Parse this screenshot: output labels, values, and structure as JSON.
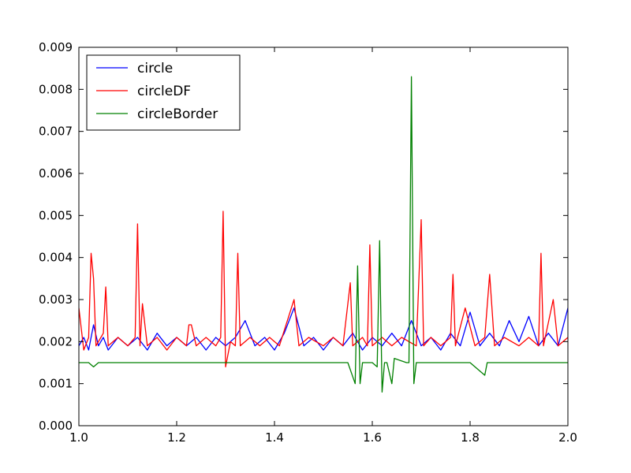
{
  "chart_data": {
    "type": "line",
    "title": "",
    "xlabel": "",
    "ylabel": "",
    "xlim": [
      1.0,
      2.0
    ],
    "ylim": [
      0.0,
      0.009
    ],
    "x_ticks": [
      1.0,
      1.2,
      1.4,
      1.6,
      1.8,
      2.0
    ],
    "x_tick_labels": [
      "1.0",
      "1.2",
      "1.4",
      "1.6",
      "1.8",
      "2.0"
    ],
    "y_ticks": [
      0.0,
      0.001,
      0.002,
      0.003,
      0.004,
      0.005,
      0.006,
      0.007,
      0.008,
      0.009
    ],
    "y_tick_labels": [
      "0.000",
      "0.001",
      "0.002",
      "0.003",
      "0.004",
      "0.005",
      "0.006",
      "0.007",
      "0.008",
      "0.009"
    ],
    "grid": false,
    "legend_position": "top-left",
    "series": [
      {
        "name": "circle",
        "color": "#0000ff",
        "points": [
          [
            1.0,
            0.0019
          ],
          [
            1.01,
            0.0021
          ],
          [
            1.02,
            0.0018
          ],
          [
            1.03,
            0.0024
          ],
          [
            1.04,
            0.0019
          ],
          [
            1.05,
            0.0021
          ],
          [
            1.06,
            0.0018
          ],
          [
            1.08,
            0.0021
          ],
          [
            1.1,
            0.0019
          ],
          [
            1.12,
            0.0021
          ],
          [
            1.14,
            0.0018
          ],
          [
            1.16,
            0.0022
          ],
          [
            1.18,
            0.0019
          ],
          [
            1.2,
            0.0021
          ],
          [
            1.22,
            0.0019
          ],
          [
            1.24,
            0.0021
          ],
          [
            1.26,
            0.0018
          ],
          [
            1.28,
            0.0021
          ],
          [
            1.3,
            0.0019
          ],
          [
            1.32,
            0.0021
          ],
          [
            1.34,
            0.0025
          ],
          [
            1.36,
            0.0019
          ],
          [
            1.38,
            0.0021
          ],
          [
            1.4,
            0.0018
          ],
          [
            1.42,
            0.0022
          ],
          [
            1.44,
            0.0028
          ],
          [
            1.46,
            0.0019
          ],
          [
            1.48,
            0.0021
          ],
          [
            1.5,
            0.0018
          ],
          [
            1.52,
            0.0021
          ],
          [
            1.54,
            0.0019
          ],
          [
            1.56,
            0.0022
          ],
          [
            1.58,
            0.0018
          ],
          [
            1.6,
            0.0021
          ],
          [
            1.62,
            0.0019
          ],
          [
            1.64,
            0.0022
          ],
          [
            1.66,
            0.0019
          ],
          [
            1.68,
            0.0025
          ],
          [
            1.7,
            0.0019
          ],
          [
            1.72,
            0.0021
          ],
          [
            1.74,
            0.0018
          ],
          [
            1.76,
            0.0022
          ],
          [
            1.78,
            0.0019
          ],
          [
            1.8,
            0.0027
          ],
          [
            1.82,
            0.0019
          ],
          [
            1.84,
            0.0022
          ],
          [
            1.86,
            0.0019
          ],
          [
            1.88,
            0.0025
          ],
          [
            1.9,
            0.002
          ],
          [
            1.92,
            0.0026
          ],
          [
            1.94,
            0.0019
          ],
          [
            1.96,
            0.0022
          ],
          [
            1.98,
            0.0019
          ],
          [
            2.0,
            0.0028
          ]
        ]
      },
      {
        "name": "circleDF",
        "color": "#ff0000",
        "points": [
          [
            1.0,
            0.0028
          ],
          [
            1.01,
            0.0018
          ],
          [
            1.02,
            0.0021
          ],
          [
            1.025,
            0.0041
          ],
          [
            1.03,
            0.0035
          ],
          [
            1.035,
            0.0019
          ],
          [
            1.05,
            0.0022
          ],
          [
            1.055,
            0.0033
          ],
          [
            1.06,
            0.0019
          ],
          [
            1.08,
            0.0021
          ],
          [
            1.1,
            0.0019
          ],
          [
            1.115,
            0.0021
          ],
          [
            1.12,
            0.0048
          ],
          [
            1.125,
            0.0019
          ],
          [
            1.13,
            0.0029
          ],
          [
            1.14,
            0.0019
          ],
          [
            1.16,
            0.0021
          ],
          [
            1.18,
            0.0018
          ],
          [
            1.2,
            0.0021
          ],
          [
            1.22,
            0.0019
          ],
          [
            1.225,
            0.0024
          ],
          [
            1.23,
            0.0024
          ],
          [
            1.24,
            0.0019
          ],
          [
            1.26,
            0.0021
          ],
          [
            1.28,
            0.0019
          ],
          [
            1.29,
            0.0021
          ],
          [
            1.295,
            0.0051
          ],
          [
            1.3,
            0.0014
          ],
          [
            1.31,
            0.002
          ],
          [
            1.32,
            0.0019
          ],
          [
            1.325,
            0.0041
          ],
          [
            1.33,
            0.0019
          ],
          [
            1.35,
            0.0021
          ],
          [
            1.37,
            0.0019
          ],
          [
            1.39,
            0.0021
          ],
          [
            1.41,
            0.0019
          ],
          [
            1.44,
            0.003
          ],
          [
            1.45,
            0.0019
          ],
          [
            1.47,
            0.0021
          ],
          [
            1.5,
            0.0019
          ],
          [
            1.52,
            0.0021
          ],
          [
            1.54,
            0.0019
          ],
          [
            1.555,
            0.0034
          ],
          [
            1.56,
            0.0019
          ],
          [
            1.58,
            0.0021
          ],
          [
            1.59,
            0.0019
          ],
          [
            1.595,
            0.0043
          ],
          [
            1.6,
            0.0019
          ],
          [
            1.62,
            0.0021
          ],
          [
            1.64,
            0.0019
          ],
          [
            1.66,
            0.0021
          ],
          [
            1.69,
            0.0019
          ],
          [
            1.7,
            0.0049
          ],
          [
            1.705,
            0.0019
          ],
          [
            1.72,
            0.0021
          ],
          [
            1.74,
            0.0019
          ],
          [
            1.76,
            0.0021
          ],
          [
            1.765,
            0.0036
          ],
          [
            1.77,
            0.0019
          ],
          [
            1.79,
            0.0028
          ],
          [
            1.81,
            0.0019
          ],
          [
            1.83,
            0.0021
          ],
          [
            1.84,
            0.0036
          ],
          [
            1.85,
            0.0019
          ],
          [
            1.87,
            0.0021
          ],
          [
            1.9,
            0.0019
          ],
          [
            1.92,
            0.0021
          ],
          [
            1.94,
            0.0019
          ],
          [
            1.945,
            0.0041
          ],
          [
            1.95,
            0.0019
          ],
          [
            1.97,
            0.003
          ],
          [
            1.98,
            0.0019
          ],
          [
            2.0,
            0.0021
          ]
        ]
      },
      {
        "name": "circleBorder",
        "color": "#008000",
        "points": [
          [
            1.0,
            0.0015
          ],
          [
            1.02,
            0.0015
          ],
          [
            1.03,
            0.0014
          ],
          [
            1.04,
            0.0015
          ],
          [
            1.08,
            0.0015
          ],
          [
            1.1,
            0.0015
          ],
          [
            1.13,
            0.0015
          ],
          [
            1.15,
            0.0015
          ],
          [
            1.2,
            0.0015
          ],
          [
            1.25,
            0.0015
          ],
          [
            1.3,
            0.0015
          ],
          [
            1.35,
            0.0015
          ],
          [
            1.4,
            0.0015
          ],
          [
            1.45,
            0.0015
          ],
          [
            1.5,
            0.0015
          ],
          [
            1.55,
            0.0015
          ],
          [
            1.565,
            0.001
          ],
          [
            1.57,
            0.0038
          ],
          [
            1.575,
            0.001
          ],
          [
            1.58,
            0.0015
          ],
          [
            1.6,
            0.0015
          ],
          [
            1.61,
            0.0014
          ],
          [
            1.615,
            0.0044
          ],
          [
            1.62,
            0.0008
          ],
          [
            1.625,
            0.0015
          ],
          [
            1.63,
            0.0015
          ],
          [
            1.64,
            0.001
          ],
          [
            1.645,
            0.0016
          ],
          [
            1.67,
            0.0015
          ],
          [
            1.675,
            0.0015
          ],
          [
            1.68,
            0.0083
          ],
          [
            1.685,
            0.001
          ],
          [
            1.69,
            0.0015
          ],
          [
            1.7,
            0.0015
          ],
          [
            1.75,
            0.0015
          ],
          [
            1.8,
            0.0015
          ],
          [
            1.83,
            0.0012
          ],
          [
            1.835,
            0.0015
          ],
          [
            1.85,
            0.0015
          ],
          [
            1.9,
            0.0015
          ],
          [
            1.95,
            0.0015
          ],
          [
            2.0,
            0.0015
          ]
        ]
      }
    ]
  }
}
